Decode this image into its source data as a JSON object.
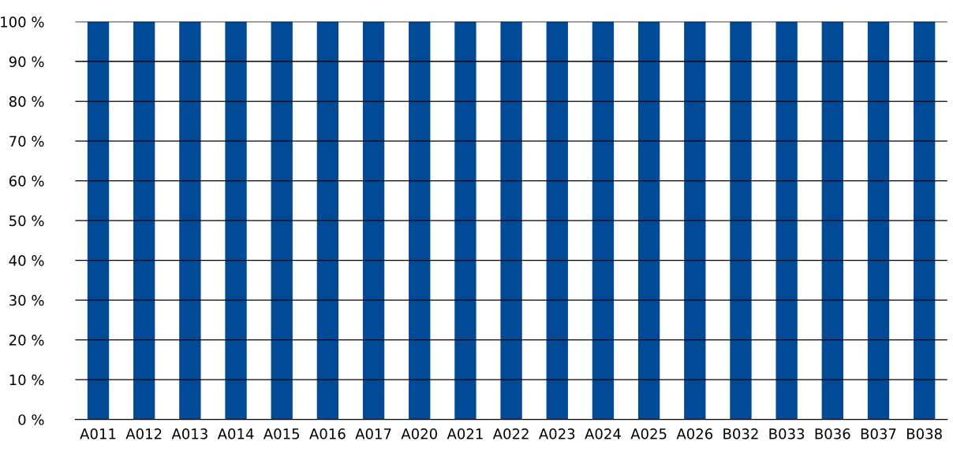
{
  "chart_data": {
    "type": "bar",
    "categories": [
      "A011",
      "A012",
      "A013",
      "A014",
      "A015",
      "A016",
      "A017",
      "A020",
      "A021",
      "A022",
      "A023",
      "A024",
      "A025",
      "A026",
      "B032",
      "B033",
      "B036",
      "B037",
      "B038"
    ],
    "values": [
      100,
      100,
      100,
      100,
      100,
      100,
      100,
      100,
      100,
      100,
      100,
      100,
      100,
      100,
      100,
      100,
      100,
      100,
      100
    ],
    "color": "#004a98",
    "ylim": [
      0,
      100
    ],
    "yticks": [
      {
        "value": 0,
        "label": "0 %"
      },
      {
        "value": 10,
        "label": "10 %"
      },
      {
        "value": 20,
        "label": "20 %"
      },
      {
        "value": 30,
        "label": "30 %"
      },
      {
        "value": 40,
        "label": "40 %"
      },
      {
        "value": 50,
        "label": "50 %"
      },
      {
        "value": 60,
        "label": "60 %"
      },
      {
        "value": 70,
        "label": "70 %"
      },
      {
        "value": 80,
        "label": "80 %"
      },
      {
        "value": 90,
        "label": "90 %"
      },
      {
        "value": 100,
        "label": "100 %"
      }
    ],
    "grid": "y",
    "legend": false
  }
}
